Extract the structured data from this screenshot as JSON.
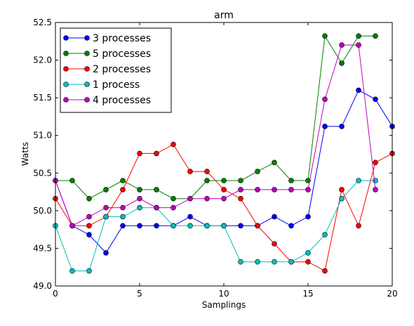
{
  "chart_data": {
    "type": "line",
    "title": "arm",
    "xlabel": "Samplings",
    "ylabel": "Watts",
    "xlim": [
      0,
      20
    ],
    "ylim": [
      49.0,
      52.5
    ],
    "xticks": [
      0,
      5,
      10,
      15,
      20
    ],
    "xtick_labels": [
      "0",
      "5",
      "10",
      "15",
      "20"
    ],
    "yticks": [
      49.0,
      49.5,
      50.0,
      50.5,
      51.0,
      51.5,
      52.0,
      52.5
    ],
    "ytick_labels": [
      "49.0",
      "49.5",
      "50.0",
      "50.5",
      "51.0",
      "51.5",
      "52.0",
      "52.5"
    ],
    "grid": false,
    "legend_position": "top-left",
    "series": [
      {
        "name": "3 processes",
        "color": "#0000ff",
        "x": [
          0,
          1,
          2,
          3,
          4,
          5,
          6,
          7,
          8,
          9,
          10,
          11,
          12,
          13,
          14,
          15,
          16,
          17,
          18,
          19,
          20
        ],
        "values": [
          50.4,
          49.8,
          49.68,
          49.44,
          49.8,
          49.8,
          49.8,
          49.8,
          49.92,
          49.8,
          49.8,
          49.8,
          49.8,
          49.92,
          49.8,
          49.92,
          51.12,
          51.12,
          51.6,
          51.48,
          51.12
        ]
      },
      {
        "name": "5 processes",
        "color": "#008000",
        "x": [
          0,
          1,
          2,
          3,
          4,
          5,
          6,
          7,
          8,
          9,
          10,
          11,
          12,
          13,
          14,
          15,
          16,
          17,
          18,
          19
        ],
        "values": [
          50.4,
          50.4,
          50.16,
          50.28,
          50.4,
          50.28,
          50.28,
          50.16,
          50.16,
          50.4,
          50.4,
          50.4,
          50.52,
          50.64,
          50.4,
          50.4,
          52.32,
          51.96,
          52.32,
          52.32
        ]
      },
      {
        "name": "2 processes",
        "color": "#ff0000",
        "x": [
          0,
          1,
          2,
          3,
          4,
          5,
          6,
          7,
          8,
          9,
          10,
          11,
          12,
          13,
          14,
          15,
          16,
          17,
          18,
          19,
          20
        ],
        "values": [
          50.16,
          49.8,
          49.8,
          49.92,
          50.28,
          50.76,
          50.76,
          50.88,
          50.52,
          50.52,
          50.28,
          50.16,
          49.8,
          49.56,
          49.32,
          49.32,
          49.2,
          50.28,
          49.8,
          50.64,
          50.76
        ]
      },
      {
        "name": "1 process",
        "color": "#00bfbf",
        "x": [
          0,
          1,
          2,
          3,
          4,
          5,
          6,
          7,
          8,
          9,
          10,
          11,
          12,
          13,
          14,
          15,
          16,
          17,
          18,
          19
        ],
        "values": [
          49.8,
          49.2,
          49.2,
          49.92,
          49.92,
          50.04,
          50.04,
          49.8,
          49.8,
          49.8,
          49.8,
          49.32,
          49.32,
          49.32,
          49.32,
          49.44,
          49.68,
          50.16,
          50.4,
          50.4
        ]
      },
      {
        "name": "4 processes",
        "color": "#bf00bf",
        "x": [
          0,
          1,
          2,
          3,
          4,
          5,
          6,
          7,
          8,
          9,
          10,
          11,
          12,
          13,
          14,
          15,
          16,
          17,
          18,
          19
        ],
        "values": [
          50.4,
          49.8,
          49.92,
          50.04,
          50.04,
          50.16,
          50.04,
          50.04,
          50.16,
          50.16,
          50.16,
          50.28,
          50.28,
          50.28,
          50.28,
          50.28,
          51.48,
          52.2,
          52.2,
          50.28
        ]
      }
    ]
  }
}
